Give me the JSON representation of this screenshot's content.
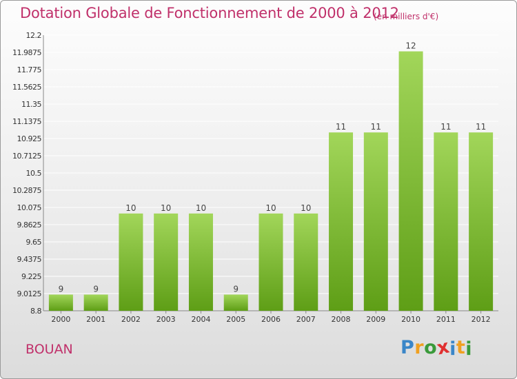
{
  "header": {
    "title": "Dotation Globale de Fonctionnement de 2000 à 2012",
    "subtitle": "(en milliers d'€)"
  },
  "footer": {
    "town": "BOUAN",
    "logo": {
      "letters": [
        "P",
        "r",
        "o",
        "x",
        "i",
        "t",
        "i"
      ],
      "colors": [
        "#3a86c8",
        "#f0a020",
        "#3a9a3a",
        "#e03030",
        "#3a86c8",
        "#f0a020",
        "#3a9a3a"
      ]
    }
  },
  "chart_data": {
    "type": "bar",
    "categories": [
      "2000",
      "2001",
      "2002",
      "2003",
      "2004",
      "2005",
      "2006",
      "2007",
      "2008",
      "2009",
      "2010",
      "2011",
      "2012"
    ],
    "values": [
      9,
      9,
      10,
      10,
      10,
      9,
      10,
      10,
      11,
      11,
      12,
      11,
      11
    ],
    "data_labels": [
      "9",
      "9",
      "10",
      "10",
      "10",
      "9",
      "10",
      "10",
      "11",
      "11",
      "12",
      "11",
      "11"
    ],
    "bar_heights": [
      9.0,
      9.0,
      10.0,
      10.0,
      10.0,
      9.0,
      10.0,
      10.0,
      11.0,
      11.0,
      12.0,
      11.0,
      11.0
    ],
    "ylim": [
      8.8,
      12.2
    ],
    "yticks": [
      8.8,
      9.0125,
      9.225,
      9.4375,
      9.65,
      9.8625,
      10.075,
      10.2875,
      10.5,
      10.7125,
      10.925,
      11.1375,
      11.35,
      11.5625,
      11.775,
      11.9875,
      12.2
    ],
    "ytick_labels": [
      "8.8",
      "9.0125",
      "9.225",
      "9.4375",
      "9.65",
      "9.8625",
      "10.075",
      "10.2875",
      "10.5",
      "10.7125",
      "10.925",
      "11.1375",
      "11.35",
      "11.5625",
      "11.775",
      "11.9875",
      "12.2"
    ],
    "grid": true,
    "colors": {
      "bar_top": "#a2d65a",
      "bar_bottom": "#5e9e16",
      "grid": "#ffffff",
      "axis": "#888888"
    }
  }
}
